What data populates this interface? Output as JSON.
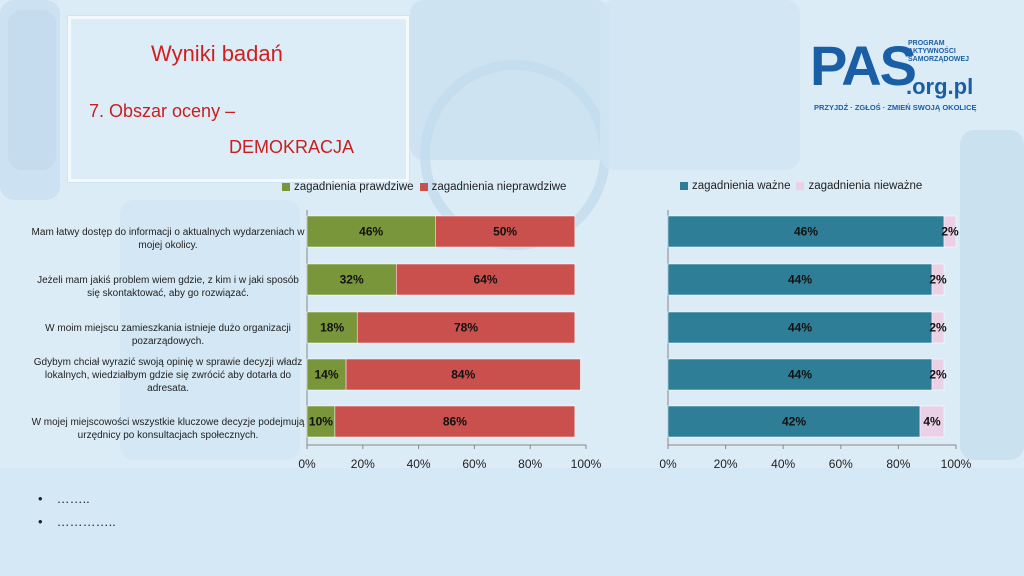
{
  "slide": {
    "title": "Wyniki badań",
    "subtitle_line1": "7. Obszar oceny –",
    "subtitle_line2": "DEMOKRACJA"
  },
  "logo": {
    "big": "PAS",
    "stack": [
      "PROGRAM",
      "AKTYWNOŚCI",
      "SAMORZĄDOWEJ"
    ],
    "org": ".org.pl",
    "claim": "PRZYJDŹ · ZGŁOŚ · ZMIEŃ SWOJĄ OKOLICĘ"
  },
  "bullets": [
    "……..",
    "………….."
  ],
  "colors": {
    "true": "#7a963a",
    "false": "#c9504d",
    "important": "#2e7e98",
    "unimportant": "#ead1e6"
  },
  "chart_data": [
    {
      "type": "bar",
      "orientation": "horizontal",
      "stacked": true,
      "categories": [
        "Mam łatwy dostęp do informacji o aktualnych wydarzeniach w mojej okolicy.",
        "Jeżeli mam jakiś problem wiem gdzie, z kim i w jaki sposób się skontaktować, aby go rozwiązać.",
        "W moim miejscu zamieszkania istnieje dużo organizacji pozarządowych.",
        "Gdybym chciał wyrazić swoją opinię w sprawie decyzji władz lokalnych, wiedziałbym gdzie się zwrócić aby dotarła do adresata.",
        "W mojej miejscowości wszystkie kluczowe decyzje podejmują urzędnicy po konsultacjach społecznych."
      ],
      "series": [
        {
          "name": "zagadnienia prawdziwe",
          "values": [
            46,
            32,
            18,
            14,
            10
          ],
          "labels": [
            "46%",
            "32%",
            "18%",
            "14%",
            "10%"
          ]
        },
        {
          "name": "zagadnienia nieprawdziwe",
          "values": [
            50,
            64,
            78,
            84,
            86
          ],
          "labels": [
            "50%",
            "64%",
            "78%",
            "84%",
            "86%"
          ]
        }
      ],
      "xlim": [
        0,
        100
      ],
      "xticks": [
        "0%",
        "20%",
        "40%",
        "60%",
        "80%",
        "100%"
      ],
      "legend_position": "top"
    },
    {
      "type": "bar",
      "orientation": "horizontal",
      "stacked": true,
      "categories": [
        "Mam łatwy dostęp do informacji o aktualnych wydarzeniach w mojej okolicy.",
        "Jeżeli mam jakiś problem wiem gdzie, z kim i w jaki sposób się skontaktować, aby go rozwiązać.",
        "W moim miejscu zamieszkania istnieje dużo organizacji pozarządowych.",
        "Gdybym chciał wyrazić swoją opinię w sprawie decyzji władz lokalnych, wiedziałbym gdzie się zwrócić aby dotarła do adresata.",
        "W mojej miejscowości wszystkie kluczowe decyzje podejmują urzędnicy po konsultacjach społecznych."
      ],
      "series": [
        {
          "name": "zagadnienia ważne",
          "values": [
            46,
            44,
            44,
            44,
            42
          ],
          "labels": [
            "46%",
            "44%",
            "44%",
            "44%",
            "42%"
          ]
        },
        {
          "name": "zagadnienia nieważne",
          "values": [
            2,
            2,
            2,
            2,
            4
          ],
          "labels": [
            "2%",
            "2%",
            "2%",
            "2%",
            "4%"
          ]
        }
      ],
      "xlim": [
        0,
        48
      ],
      "xticks": [
        "0%",
        "20%",
        "40%",
        "60%",
        "80%",
        "100%"
      ],
      "legend_position": "top"
    }
  ]
}
